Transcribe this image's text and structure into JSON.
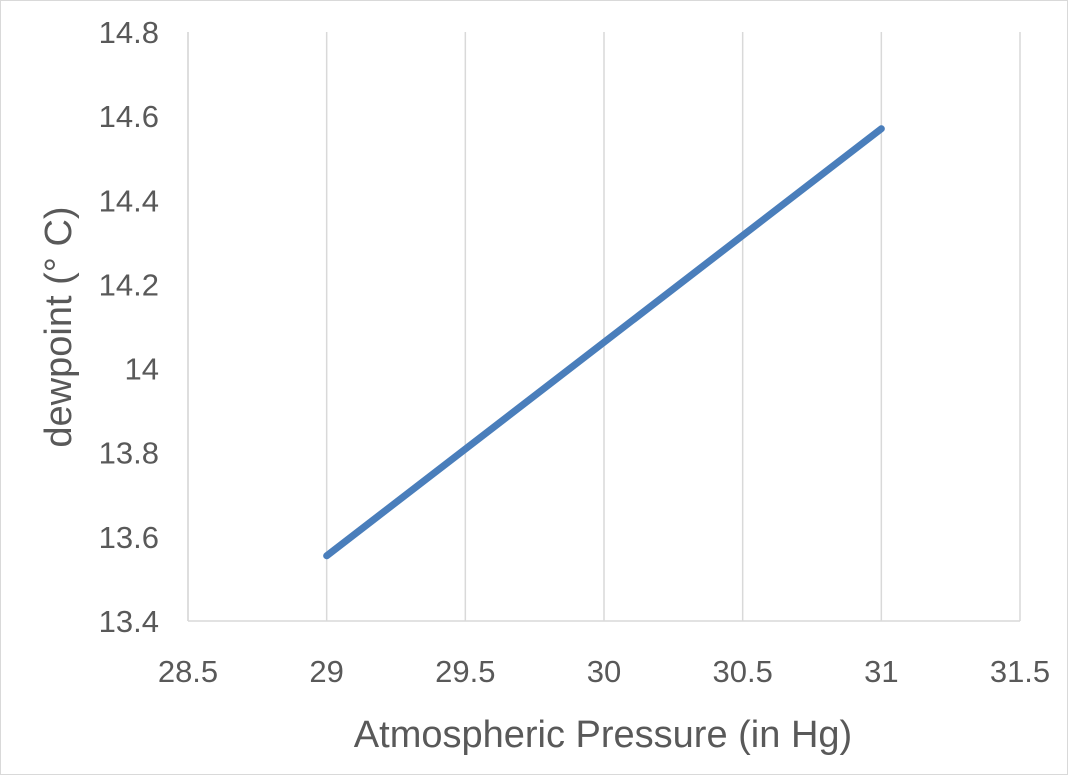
{
  "chart_data": {
    "type": "line",
    "title": "",
    "xlabel": "Atmospheric Pressure (in Hg)",
    "ylabel": "dewpoint (° C)",
    "xlim": [
      28.5,
      31.5
    ],
    "ylim": [
      13.4,
      14.8
    ],
    "x_ticks": [
      "28.5",
      "29",
      "29.5",
      "30",
      "30.5",
      "31",
      "31.5"
    ],
    "y_ticks": [
      "13.4",
      "13.6",
      "13.8",
      "14",
      "14.2",
      "14.4",
      "14.6",
      "14.8"
    ],
    "grid": "vertical",
    "legend": "none",
    "series": [
      {
        "name": "dewpoint",
        "color": "#4a7ebb",
        "x": [
          29,
          31
        ],
        "y": [
          13.555,
          14.57
        ]
      }
    ]
  }
}
